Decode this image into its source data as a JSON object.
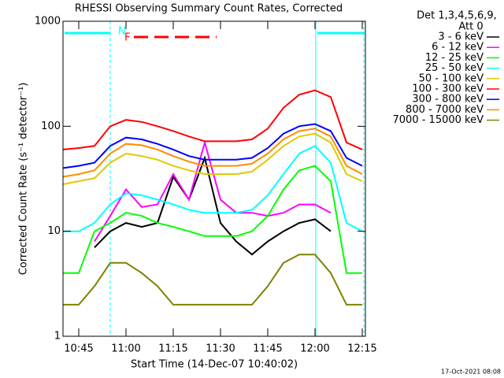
{
  "chart_data": {
    "type": "line",
    "title": "RHESSI Observing Summary Count Rates, Corrected",
    "x_label": "Start Time (14-Dec-07 10:40:02)",
    "y_label": "Corrected Count Rate (s⁻¹ detector⁻¹)",
    "legend_header": [
      "Det 1,3,4,5,6,9,",
      "Att 0"
    ],
    "footer": "17-Oct-2021 08:08",
    "annotations": [
      "N",
      "F"
    ],
    "y_log": true,
    "xlim": [
      "10:40",
      "12:16"
    ],
    "ylim": [
      1,
      1000
    ],
    "xticks": [
      "10:45",
      "11:00",
      "11:15",
      "11:30",
      "11:45",
      "12:00",
      "12:15"
    ],
    "yticks": [
      1,
      10,
      100,
      1000
    ],
    "x": [
      "10:40",
      "10:45",
      "10:50",
      "10:55",
      "11:00",
      "11:05",
      "11:10",
      "11:15",
      "11:20",
      "11:25",
      "11:30",
      "11:35",
      "11:40",
      "11:45",
      "11:50",
      "11:55",
      "12:00",
      "12:05",
      "12:10",
      "12:15"
    ],
    "series": [
      {
        "name": "3 - 6 keV",
        "color": "#000000",
        "values": [
          null,
          null,
          7,
          10,
          12,
          11,
          12,
          33,
          20,
          50,
          12,
          8,
          6,
          8,
          10,
          12,
          13,
          10,
          null,
          null
        ]
      },
      {
        "name": "6 - 12 keV",
        "color": "#ff00ff",
        "values": [
          null,
          null,
          8,
          14,
          25,
          17,
          18,
          35,
          20,
          70,
          20,
          15,
          15,
          14,
          15,
          18,
          18,
          15,
          null,
          null
        ]
      },
      {
        "name": "12 - 25 keV",
        "color": "#00ff00",
        "values": [
          4,
          4,
          10,
          12,
          15,
          14,
          12,
          11,
          10,
          9,
          9,
          9,
          10,
          14,
          25,
          38,
          42,
          30,
          4,
          4
        ]
      },
      {
        "name": "25 - 50 keV",
        "color": "#00ffff",
        "values": [
          10,
          10,
          12,
          18,
          23,
          22,
          20,
          18,
          16,
          15,
          15,
          15,
          16,
          22,
          35,
          55,
          65,
          45,
          12,
          10
        ]
      },
      {
        "name": "50 - 100 keV",
        "color": "#e0c800",
        "values": [
          28,
          30,
          32,
          45,
          55,
          52,
          48,
          42,
          38,
          35,
          35,
          35,
          37,
          48,
          65,
          80,
          85,
          70,
          35,
          30
        ]
      },
      {
        "name": "100 - 300 keV",
        "color": "#ff0000",
        "values": [
          60,
          62,
          65,
          100,
          115,
          110,
          100,
          90,
          80,
          72,
          72,
          72,
          75,
          95,
          150,
          200,
          220,
          190,
          70,
          60
        ]
      },
      {
        "name": "300 - 800 keV",
        "color": "#0000ff",
        "values": [
          40,
          42,
          45,
          65,
          78,
          75,
          68,
          60,
          52,
          48,
          48,
          48,
          50,
          62,
          85,
          100,
          105,
          90,
          50,
          42
        ]
      },
      {
        "name": "800 - 7000 keV",
        "color": "#ff8c00",
        "values": [
          33,
          35,
          38,
          55,
          68,
          66,
          60,
          52,
          46,
          42,
          42,
          42,
          44,
          55,
          75,
          90,
          95,
          80,
          42,
          35
        ]
      },
      {
        "name": "7000 - 15000 keV",
        "color": "#808000",
        "values": [
          2,
          2,
          3,
          5,
          5,
          4,
          3,
          2,
          2,
          2,
          2,
          2,
          2,
          3,
          5,
          6,
          6,
          4,
          2,
          2
        ]
      }
    ]
  }
}
